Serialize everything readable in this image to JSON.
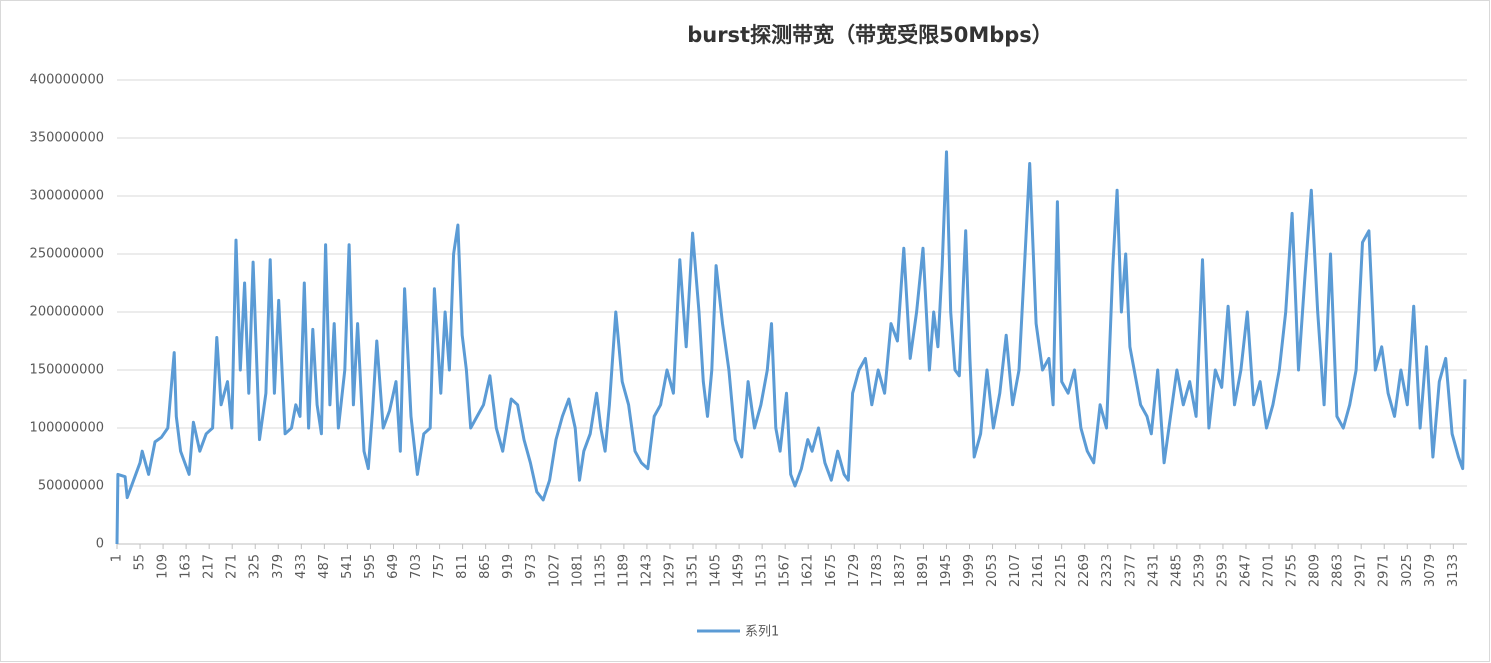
{
  "chart_data": {
    "type": "line",
    "title": "burst探测带宽（带宽受限50Mbps）",
    "x": [
      1,
      3,
      20,
      25,
      40,
      55,
      60,
      75,
      90,
      105,
      120,
      135,
      140,
      150,
      160,
      170,
      180,
      195,
      210,
      225,
      235,
      245,
      260,
      270,
      280,
      290,
      300,
      310,
      320,
      335,
      350,
      360,
      370,
      380,
      395,
      410,
      420,
      430,
      440,
      450,
      460,
      470,
      480,
      490,
      500,
      510,
      520,
      535,
      545,
      555,
      565,
      580,
      590,
      600,
      610,
      625,
      640,
      655,
      665,
      675,
      690,
      705,
      720,
      735,
      745,
      760,
      770,
      780,
      790,
      800,
      810,
      820,
      830,
      845,
      860,
      875,
      890,
      905,
      925,
      940,
      955,
      970,
      985,
      1000,
      1015,
      1030,
      1045,
      1060,
      1075,
      1085,
      1095,
      1110,
      1125,
      1135,
      1145,
      1155,
      1170,
      1185,
      1200,
      1215,
      1230,
      1245,
      1260,
      1275,
      1290,
      1305,
      1320,
      1335,
      1350,
      1365,
      1375,
      1385,
      1395,
      1405,
      1420,
      1435,
      1450,
      1465,
      1480,
      1495,
      1510,
      1525,
      1535,
      1545,
      1555,
      1570,
      1580,
      1590,
      1605,
      1620,
      1630,
      1645,
      1660,
      1675,
      1690,
      1705,
      1715,
      1725,
      1740,
      1755,
      1770,
      1785,
      1800,
      1815,
      1830,
      1845,
      1860,
      1875,
      1890,
      1905,
      1915,
      1925,
      1935,
      1945,
      1955,
      1965,
      1975,
      1990,
      2000,
      2010,
      2025,
      2040,
      2055,
      2070,
      2085,
      2100,
      2115,
      2130,
      2140,
      2155,
      2170,
      2185,
      2195,
      2205,
      2215,
      2230,
      2245,
      2260,
      2275,
      2290,
      2305,
      2320,
      2335,
      2345,
      2355,
      2365,
      2375,
      2385,
      2400,
      2415,
      2425,
      2440,
      2455,
      2470,
      2485,
      2500,
      2515,
      2530,
      2545,
      2560,
      2575,
      2590,
      2605,
      2620,
      2635,
      2650,
      2665,
      2680,
      2695,
      2710,
      2725,
      2740,
      2755,
      2770,
      2785,
      2800,
      2815,
      2830,
      2845,
      2860,
      2875,
      2890,
      2905,
      2920,
      2935,
      2950,
      2965,
      2980,
      2995,
      3010,
      3025,
      3040,
      3055,
      3070,
      3085,
      3100,
      3115,
      3130,
      3145,
      3155,
      3160
    ],
    "series": [
      {
        "name": "系列1",
        "color": "#5b9bd5",
        "values": [
          0,
          60000000,
          58000000,
          40000000,
          55000000,
          70000000,
          80000000,
          60000000,
          88000000,
          92000000,
          100000000,
          165000000,
          110000000,
          80000000,
          70000000,
          60000000,
          105000000,
          80000000,
          95000000,
          100000000,
          178000000,
          120000000,
          140000000,
          100000000,
          262000000,
          150000000,
          225000000,
          130000000,
          243000000,
          90000000,
          130000000,
          245000000,
          130000000,
          210000000,
          95000000,
          100000000,
          120000000,
          110000000,
          225000000,
          100000000,
          185000000,
          120000000,
          95000000,
          258000000,
          120000000,
          190000000,
          100000000,
          150000000,
          258000000,
          120000000,
          190000000,
          80000000,
          65000000,
          115000000,
          175000000,
          100000000,
          115000000,
          140000000,
          80000000,
          220000000,
          110000000,
          60000000,
          95000000,
          100000000,
          220000000,
          130000000,
          200000000,
          150000000,
          250000000,
          275000000,
          180000000,
          150000000,
          100000000,
          110000000,
          120000000,
          145000000,
          100000000,
          80000000,
          125000000,
          120000000,
          90000000,
          70000000,
          45000000,
          38000000,
          55000000,
          90000000,
          110000000,
          125000000,
          100000000,
          55000000,
          80000000,
          95000000,
          130000000,
          100000000,
          80000000,
          120000000,
          200000000,
          140000000,
          120000000,
          80000000,
          70000000,
          65000000,
          110000000,
          120000000,
          150000000,
          130000000,
          245000000,
          170000000,
          268000000,
          200000000,
          140000000,
          110000000,
          150000000,
          240000000,
          190000000,
          150000000,
          90000000,
          75000000,
          140000000,
          100000000,
          120000000,
          150000000,
          190000000,
          100000000,
          80000000,
          130000000,
          60000000,
          50000000,
          65000000,
          90000000,
          80000000,
          100000000,
          70000000,
          55000000,
          80000000,
          60000000,
          55000000,
          130000000,
          150000000,
          160000000,
          120000000,
          150000000,
          130000000,
          190000000,
          175000000,
          255000000,
          160000000,
          200000000,
          255000000,
          150000000,
          200000000,
          170000000,
          240000000,
          338000000,
          200000000,
          150000000,
          145000000,
          270000000,
          160000000,
          75000000,
          95000000,
          150000000,
          100000000,
          130000000,
          180000000,
          120000000,
          150000000,
          255000000,
          328000000,
          190000000,
          150000000,
          160000000,
          120000000,
          295000000,
          140000000,
          130000000,
          150000000,
          100000000,
          80000000,
          70000000,
          120000000,
          100000000,
          240000000,
          305000000,
          200000000,
          250000000,
          170000000,
          150000000,
          120000000,
          110000000,
          95000000,
          150000000,
          70000000,
          110000000,
          150000000,
          120000000,
          140000000,
          110000000,
          245000000,
          100000000,
          150000000,
          135000000,
          205000000,
          120000000,
          150000000,
          200000000,
          120000000,
          140000000,
          100000000,
          120000000,
          150000000,
          200000000,
          285000000,
          150000000,
          230000000,
          305000000,
          200000000,
          120000000,
          250000000,
          110000000,
          100000000,
          120000000,
          150000000,
          260000000,
          270000000,
          150000000,
          170000000,
          130000000,
          110000000,
          150000000,
          120000000,
          205000000,
          100000000,
          170000000,
          75000000,
          140000000,
          160000000,
          95000000,
          75000000,
          65000000,
          142000000
        ]
      }
    ],
    "xlim": [
      1,
      3165
    ],
    "xticks": [
      1,
      55,
      109,
      163,
      217,
      271,
      325,
      379,
      433,
      487,
      541,
      595,
      649,
      703,
      757,
      811,
      865,
      919,
      973,
      1027,
      1081,
      1135,
      1189,
      1243,
      1297,
      1351,
      1405,
      1459,
      1513,
      1567,
      1621,
      1675,
      1729,
      1783,
      1837,
      1891,
      1945,
      1999,
      2053,
      2107,
      2161,
      2215,
      2269,
      2323,
      2377,
      2431,
      2485,
      2539,
      2593,
      2647,
      2701,
      2755,
      2809,
      2863,
      2917,
      2971,
      3025,
      3079,
      3133
    ],
    "ylim": [
      0,
      400000000
    ],
    "yticks": [
      0,
      50000000,
      100000000,
      150000000,
      200000000,
      250000000,
      300000000,
      350000000,
      400000000
    ],
    "grid": true,
    "legend": "bottom"
  }
}
